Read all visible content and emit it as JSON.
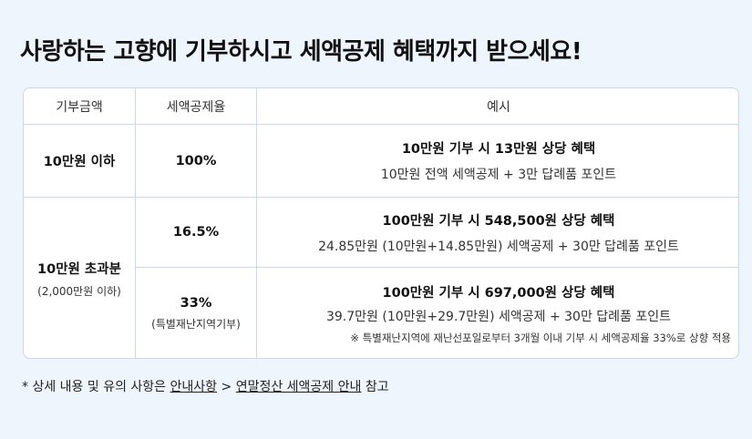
{
  "title": "사랑하는 고향에 기부하시고 세액공제 혜택까지 받으세요!",
  "table": {
    "headers": [
      "기부금액",
      "세액공제율",
      "예시"
    ],
    "row1": {
      "amount": "10만원 이하",
      "rate": "100%",
      "example_title": "10만원 기부 시 13만원 상당 혜택",
      "example_desc": "10만원 전액 세액공제 + 3만 답례품 포인트"
    },
    "row2": {
      "amount": "10만원 초과분",
      "amount_note": "(2,000만원 이하)",
      "rate": "16.5%",
      "example_title": "100만원 기부 시 548,500원 상당 혜택",
      "example_desc": "24.85만원 (10만원+14.85만원) 세액공제 + 30만 답례품 포인트"
    },
    "row3": {
      "rate": "33%",
      "rate_note": "(특별재난지역기부)",
      "example_title": "100만원 기부 시 697,000원 상당 혜택",
      "example_desc": "39.7만원 (10만원+29.7만원) 세액공제 + 30만 답례품 포인트",
      "example_note": "※ 특별재난지역에 재난선포일로부터 3개월 이내 기부 시 세액공제율 33%로 상향 적용"
    }
  },
  "footer": {
    "prefix": "* 상세 내용 및 유의 사항은",
    "link1": "안내사항",
    "separator": ">",
    "link2": "연말정산 세액공제 안내",
    "suffix": "참고"
  },
  "colors": {
    "panel_bg": "#eef5fc",
    "border": "#c9d9ec"
  }
}
